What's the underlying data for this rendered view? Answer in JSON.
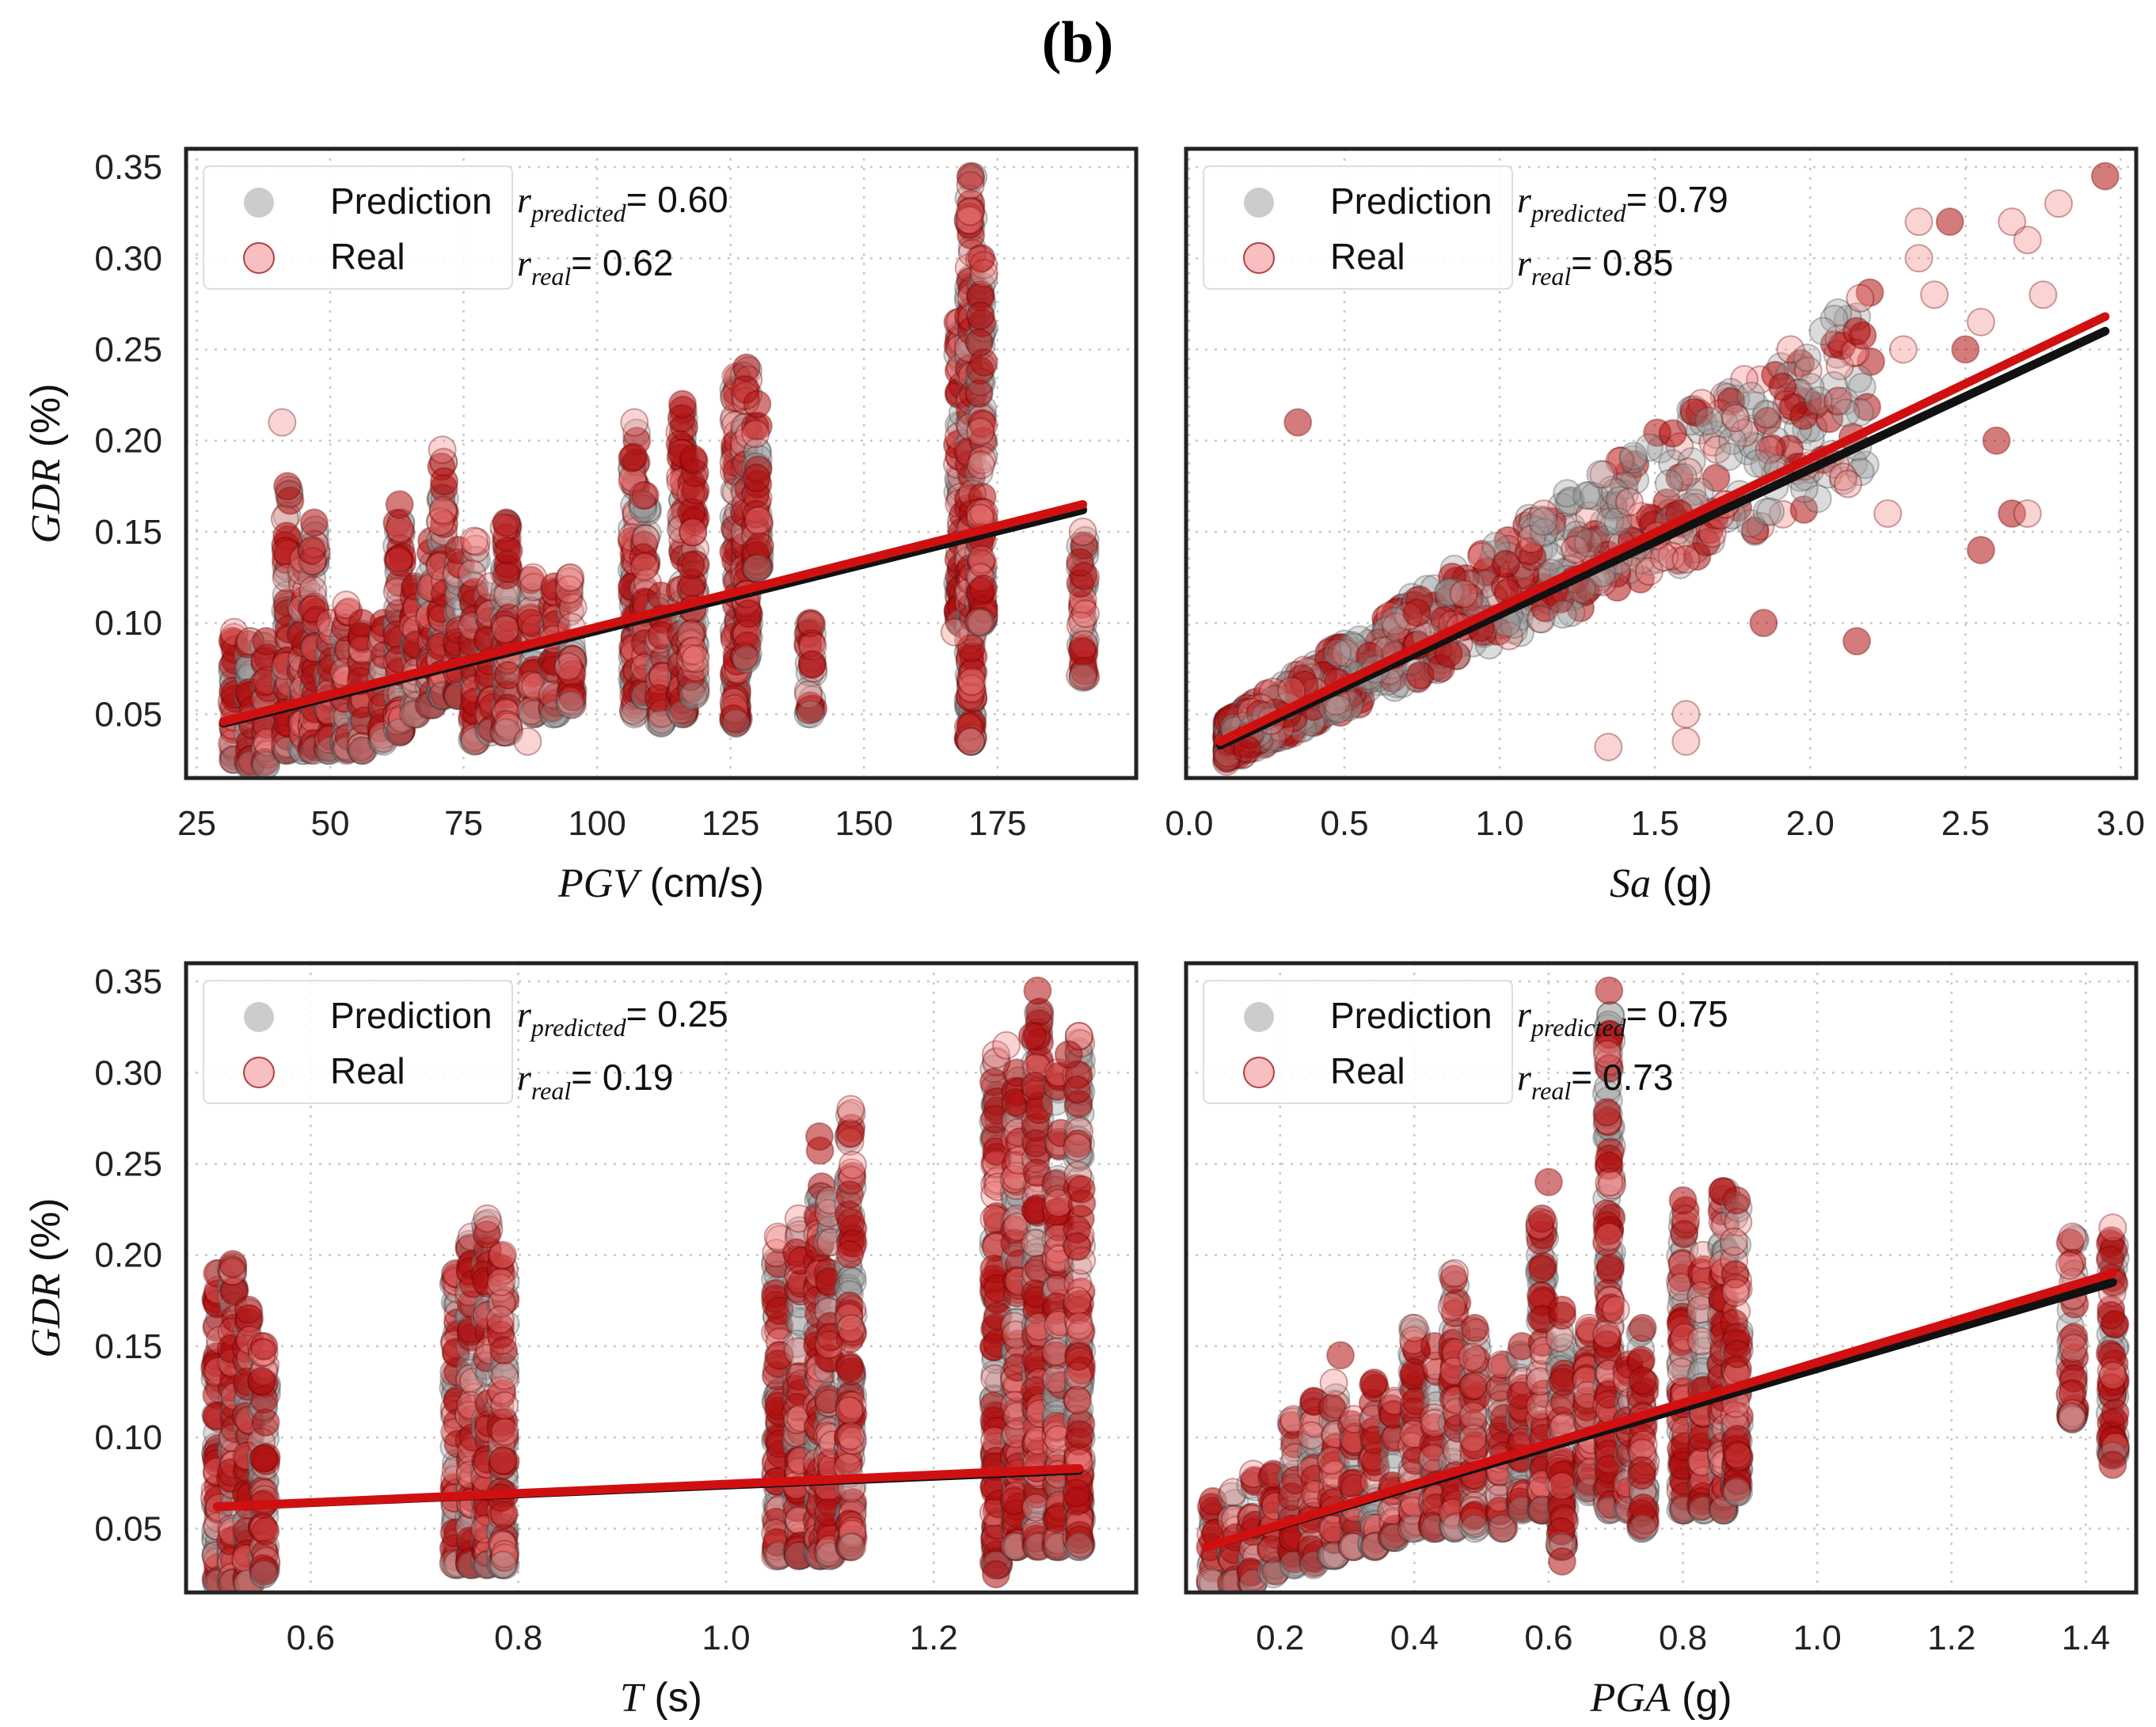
{
  "figure_label": "(b)",
  "colors": {
    "prediction": "#9a9a9a",
    "real": "#f08080",
    "real_dense": "#b01010",
    "prediction_line": "#111111",
    "real_line": "#d01010",
    "grid": "#c8c8c8",
    "frame": "#222222"
  },
  "legend": {
    "prediction": "Prediction",
    "real": "Real"
  },
  "chart_data": [
    {
      "id": "pgv",
      "type": "scatter",
      "xlabel_var": "PGV",
      "xlabel_unit": " (cm/s)",
      "ylabel_var": "GDR",
      "ylabel_unit": " (%)",
      "xlim": [
        23,
        201
      ],
      "ylim": [
        0.015,
        0.36
      ],
      "xticks": [
        25,
        50,
        75,
        100,
        125,
        150,
        175
      ],
      "xticklabels": [
        "25",
        "50",
        "75",
        "100",
        "125",
        "150",
        "175"
      ],
      "yticks": [
        0.05,
        0.1,
        0.15,
        0.2,
        0.25,
        0.3,
        0.35
      ],
      "yticklabels": [
        "0.05",
        "0.10",
        "0.15",
        "0.20",
        "0.25",
        "0.30",
        "0.35"
      ],
      "r_predicted_value": "= 0.60",
      "r_real_value": "= 0.62",
      "fit_predicted": [
        [
          30,
          0.045
        ],
        [
          191,
          0.162
        ]
      ],
      "fit_real": [
        [
          30,
          0.046
        ],
        [
          191,
          0.165
        ]
      ],
      "clusters": [
        {
          "x": 32,
          "ymin": 0.025,
          "ymax": 0.095
        },
        {
          "x": 35,
          "ymin": 0.022,
          "ymax": 0.09
        },
        {
          "x": 38,
          "ymin": 0.022,
          "ymax": 0.09
        },
        {
          "x": 42,
          "ymin": 0.03,
          "ymax": 0.175
        },
        {
          "x": 45,
          "ymin": 0.03,
          "ymax": 0.135
        },
        {
          "x": 47,
          "ymin": 0.03,
          "ymax": 0.155
        },
        {
          "x": 50,
          "ymin": 0.03,
          "ymax": 0.1
        },
        {
          "x": 53,
          "ymin": 0.03,
          "ymax": 0.11
        },
        {
          "x": 56,
          "ymin": 0.03,
          "ymax": 0.1
        },
        {
          "x": 60,
          "ymin": 0.035,
          "ymax": 0.1
        },
        {
          "x": 63,
          "ymin": 0.04,
          "ymax": 0.165
        },
        {
          "x": 66,
          "ymin": 0.05,
          "ymax": 0.12
        },
        {
          "x": 69,
          "ymin": 0.055,
          "ymax": 0.145
        },
        {
          "x": 71,
          "ymin": 0.06,
          "ymax": 0.195
        },
        {
          "x": 74,
          "ymin": 0.06,
          "ymax": 0.14
        },
        {
          "x": 77,
          "ymin": 0.035,
          "ymax": 0.145
        },
        {
          "x": 80,
          "ymin": 0.04,
          "ymax": 0.12
        },
        {
          "x": 83,
          "ymin": 0.04,
          "ymax": 0.155
        },
        {
          "x": 88,
          "ymin": 0.05,
          "ymax": 0.125
        },
        {
          "x": 92,
          "ymin": 0.05,
          "ymax": 0.12
        },
        {
          "x": 95,
          "ymin": 0.055,
          "ymax": 0.125
        },
        {
          "x": 107,
          "ymin": 0.05,
          "ymax": 0.21
        },
        {
          "x": 109,
          "ymin": 0.06,
          "ymax": 0.17
        },
        {
          "x": 112,
          "ymin": 0.045,
          "ymax": 0.115
        },
        {
          "x": 116,
          "ymin": 0.05,
          "ymax": 0.22
        },
        {
          "x": 118,
          "ymin": 0.06,
          "ymax": 0.19
        },
        {
          "x": 126,
          "ymin": 0.045,
          "ymax": 0.235
        },
        {
          "x": 128,
          "ymin": 0.08,
          "ymax": 0.24
        },
        {
          "x": 130,
          "ymin": 0.13,
          "ymax": 0.22
        },
        {
          "x": 140,
          "ymin": 0.05,
          "ymax": 0.1
        },
        {
          "x": 168,
          "ymin": 0.1,
          "ymax": 0.265
        },
        {
          "x": 170,
          "ymin": 0.035,
          "ymax": 0.345
        },
        {
          "x": 172,
          "ymin": 0.1,
          "ymax": 0.3
        },
        {
          "x": 191,
          "ymin": 0.07,
          "ymax": 0.15
        }
      ],
      "outliers": [
        [
          41,
          0.21
        ],
        [
          87,
          0.035
        ],
        [
          170,
          0.035
        ],
        [
          167,
          0.095
        ]
      ]
    },
    {
      "id": "sa",
      "type": "scatter",
      "xlabel_var": "Sa",
      "xlabel_unit": " (g)",
      "ylabel_var": "",
      "ylabel_unit": "",
      "xlim": [
        -0.01,
        3.05
      ],
      "ylim": [
        0.015,
        0.36
      ],
      "xticks": [
        0.0,
        0.5,
        1.0,
        1.5,
        2.0,
        2.5,
        3.0
      ],
      "xticklabels": [
        "0.0",
        "0.5",
        "1.0",
        "1.5",
        "2.0",
        "2.5",
        "3.0"
      ],
      "yticks": [
        0.05,
        0.1,
        0.15,
        0.2,
        0.25,
        0.3,
        0.35
      ],
      "yticklabels": [],
      "r_predicted_value": "= 0.79",
      "r_real_value": "= 0.85",
      "fit_predicted": [
        [
          0.1,
          0.033
        ],
        [
          2.95,
          0.26
        ]
      ],
      "fit_real": [
        [
          0.1,
          0.035
        ],
        [
          2.95,
          0.268
        ]
      ],
      "band": {
        "x0": 0.12,
        "x1": 2.2,
        "slope": 0.09,
        "intercept": 0.022,
        "spread": 0.045
      },
      "outliers": [
        [
          0.35,
          0.21
        ],
        [
          1.35,
          0.032
        ],
        [
          1.6,
          0.05
        ],
        [
          1.6,
          0.035
        ],
        [
          2.35,
          0.3
        ],
        [
          2.4,
          0.28
        ],
        [
          2.45,
          0.32
        ],
        [
          2.55,
          0.265
        ],
        [
          2.65,
          0.32
        ],
        [
          2.7,
          0.31
        ],
        [
          2.75,
          0.28
        ],
        [
          2.8,
          0.33
        ],
        [
          2.95,
          0.345
        ],
        [
          2.6,
          0.2
        ],
        [
          2.65,
          0.16
        ],
        [
          2.55,
          0.14
        ],
        [
          2.25,
          0.16
        ],
        [
          2.15,
          0.26
        ],
        [
          2.3,
          0.25
        ],
        [
          1.85,
          0.1
        ],
        [
          2.15,
          0.09
        ],
        [
          2.5,
          0.25
        ],
        [
          2.35,
          0.32
        ],
        [
          2.7,
          0.16
        ]
      ]
    },
    {
      "id": "t",
      "type": "scatter",
      "xlabel_var": "T",
      "xlabel_unit": " (s)",
      "ylabel_var": "GDR",
      "ylabel_unit": " (%)",
      "xlim": [
        0.48,
        1.395
      ],
      "ylim": [
        0.015,
        0.36
      ],
      "xticks": [
        0.6,
        0.8,
        1.0,
        1.2
      ],
      "xticklabels": [
        "0.6",
        "0.8",
        "1.0",
        "1.2"
      ],
      "yticks": [
        0.05,
        0.1,
        0.15,
        0.2,
        0.25,
        0.3,
        0.35
      ],
      "yticklabels": [
        "0.05",
        "0.10",
        "0.15",
        "0.20",
        "0.25",
        "0.30",
        "0.35"
      ],
      "r_predicted_value": "= 0.25",
      "r_real_value": "= 0.19",
      "fit_predicted": [
        [
          0.51,
          0.062
        ],
        [
          1.34,
          0.082
        ]
      ],
      "fit_real": [
        [
          0.51,
          0.062
        ],
        [
          1.34,
          0.083
        ]
      ],
      "clusters": [
        {
          "x": 0.51,
          "ymin": 0.02,
          "ymax": 0.19
        },
        {
          "x": 0.525,
          "ymin": 0.02,
          "ymax": 0.195
        },
        {
          "x": 0.54,
          "ymin": 0.02,
          "ymax": 0.17
        },
        {
          "x": 0.555,
          "ymin": 0.025,
          "ymax": 0.15
        },
        {
          "x": 0.74,
          "ymin": 0.03,
          "ymax": 0.19
        },
        {
          "x": 0.755,
          "ymin": 0.03,
          "ymax": 0.21
        },
        {
          "x": 0.77,
          "ymin": 0.03,
          "ymax": 0.22
        },
        {
          "x": 0.785,
          "ymin": 0.03,
          "ymax": 0.2
        },
        {
          "x": 1.05,
          "ymin": 0.035,
          "ymax": 0.21
        },
        {
          "x": 1.07,
          "ymin": 0.035,
          "ymax": 0.22
        },
        {
          "x": 1.09,
          "ymin": 0.035,
          "ymax": 0.265
        },
        {
          "x": 1.1,
          "ymin": 0.035,
          "ymax": 0.23
        },
        {
          "x": 1.12,
          "ymin": 0.04,
          "ymax": 0.28
        },
        {
          "x": 1.26,
          "ymin": 0.03,
          "ymax": 0.31
        },
        {
          "x": 1.28,
          "ymin": 0.04,
          "ymax": 0.3
        },
        {
          "x": 1.3,
          "ymin": 0.04,
          "ymax": 0.345
        },
        {
          "x": 1.32,
          "ymin": 0.04,
          "ymax": 0.3
        },
        {
          "x": 1.34,
          "ymin": 0.04,
          "ymax": 0.32
        }
      ],
      "outliers": [
        [
          1.26,
          0.025
        ],
        [
          1.27,
          0.315
        ],
        [
          1.295,
          0.32
        ],
        [
          1.34,
          0.32
        ],
        [
          1.33,
          0.31
        ]
      ]
    },
    {
      "id": "pga",
      "type": "scatter",
      "xlabel_var": "PGA",
      "xlabel_unit": " (g)",
      "ylabel_var": "",
      "ylabel_unit": "",
      "xlim": [
        0.06,
        1.475
      ],
      "ylim": [
        0.015,
        0.36
      ],
      "xticks": [
        0.2,
        0.4,
        0.6,
        0.8,
        1.0,
        1.2,
        1.4
      ],
      "xticklabels": [
        "0.2",
        "0.4",
        "0.6",
        "0.8",
        "1.0",
        "1.2",
        "1.4"
      ],
      "yticks": [
        0.05,
        0.1,
        0.15,
        0.2,
        0.25,
        0.3,
        0.35
      ],
      "yticklabels": [],
      "r_predicted_value": "= 0.75",
      "r_real_value": "= 0.73",
      "fit_predicted": [
        [
          0.09,
          0.04
        ],
        [
          1.44,
          0.185
        ]
      ],
      "fit_real": [
        [
          0.09,
          0.04
        ],
        [
          1.44,
          0.19
        ]
      ],
      "clusters": [
        {
          "x": 0.1,
          "ymin": 0.02,
          "ymax": 0.065
        },
        {
          "x": 0.13,
          "ymin": 0.02,
          "ymax": 0.07
        },
        {
          "x": 0.16,
          "ymin": 0.02,
          "ymax": 0.08
        },
        {
          "x": 0.19,
          "ymin": 0.025,
          "ymax": 0.08
        },
        {
          "x": 0.22,
          "ymin": 0.03,
          "ymax": 0.11
        },
        {
          "x": 0.25,
          "ymin": 0.03,
          "ymax": 0.12
        },
        {
          "x": 0.28,
          "ymin": 0.035,
          "ymax": 0.13
        },
        {
          "x": 0.31,
          "ymin": 0.04,
          "ymax": 0.11
        },
        {
          "x": 0.34,
          "ymin": 0.04,
          "ymax": 0.13
        },
        {
          "x": 0.37,
          "ymin": 0.045,
          "ymax": 0.12
        },
        {
          "x": 0.4,
          "ymin": 0.05,
          "ymax": 0.16
        },
        {
          "x": 0.43,
          "ymin": 0.05,
          "ymax": 0.15
        },
        {
          "x": 0.46,
          "ymin": 0.05,
          "ymax": 0.19
        },
        {
          "x": 0.49,
          "ymin": 0.05,
          "ymax": 0.16
        },
        {
          "x": 0.53,
          "ymin": 0.05,
          "ymax": 0.14
        },
        {
          "x": 0.56,
          "ymin": 0.06,
          "ymax": 0.15
        },
        {
          "x": 0.59,
          "ymin": 0.06,
          "ymax": 0.22
        },
        {
          "x": 0.62,
          "ymin": 0.04,
          "ymax": 0.17
        },
        {
          "x": 0.66,
          "ymin": 0.07,
          "ymax": 0.16
        },
        {
          "x": 0.69,
          "ymin": 0.06,
          "ymax": 0.345
        },
        {
          "x": 0.72,
          "ymin": 0.06,
          "ymax": 0.14
        },
        {
          "x": 0.74,
          "ymin": 0.05,
          "ymax": 0.16
        },
        {
          "x": 0.8,
          "ymin": 0.06,
          "ymax": 0.23
        },
        {
          "x": 0.83,
          "ymin": 0.06,
          "ymax": 0.2
        },
        {
          "x": 0.86,
          "ymin": 0.06,
          "ymax": 0.235
        },
        {
          "x": 0.88,
          "ymin": 0.07,
          "ymax": 0.23
        },
        {
          "x": 1.38,
          "ymin": 0.11,
          "ymax": 0.21
        },
        {
          "x": 1.44,
          "ymin": 0.09,
          "ymax": 0.215
        }
      ],
      "outliers": [
        [
          0.62,
          0.032
        ],
        [
          0.6,
          0.24
        ],
        [
          0.7,
          0.17
        ],
        [
          0.69,
          0.21
        ],
        [
          0.29,
          0.145
        ],
        [
          1.44,
          0.085
        ]
      ]
    }
  ]
}
